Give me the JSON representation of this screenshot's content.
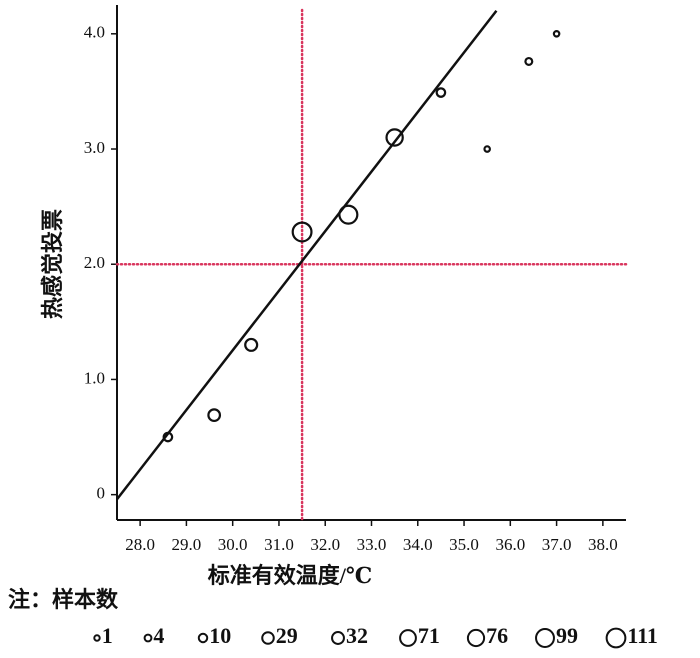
{
  "chart_data": {
    "type": "scatter",
    "xlabel": "标准有效温度/℃",
    "ylabel": "热感觉投票",
    "x": [
      28.6,
      29.6,
      30.4,
      31.5,
      32.5,
      33.5,
      34.5,
      35.5,
      36.4,
      37.0
    ],
    "y": [
      0.5,
      0.69,
      1.3,
      2.28,
      2.43,
      3.1,
      3.49,
      3.0,
      3.76,
      4.0
    ],
    "sizes": [
      10,
      29,
      32,
      111,
      99,
      76,
      10,
      1,
      4,
      1
    ],
    "color": "#111111",
    "fit": {
      "x": [
        27.5,
        35.7
      ],
      "y": [
        -0.04,
        4.2
      ],
      "color": "#111111"
    },
    "ref_x": 31.5,
    "ref_y": 2.0,
    "ref_color": "#d9365e",
    "xlim": [
      27.5,
      38.5
    ],
    "ylim": [
      -0.22,
      4.25
    ],
    "xticks": [
      {
        "value": 28,
        "label": "28.0"
      },
      {
        "value": 29,
        "label": "29.0"
      },
      {
        "value": 30,
        "label": "30.0"
      },
      {
        "value": 31,
        "label": "31.0"
      },
      {
        "value": 32,
        "label": "32.0"
      },
      {
        "value": 33,
        "label": "33.0"
      },
      {
        "value": 34,
        "label": "34.0"
      },
      {
        "value": 35,
        "label": "35.0"
      },
      {
        "value": 36,
        "label": "36.0"
      },
      {
        "value": 37,
        "label": "37.0"
      },
      {
        "value": 38,
        "label": "38.0"
      }
    ],
    "yticks": [
      0,
      {
        "value": 1,
        "label": "1.0"
      },
      {
        "value": 2,
        "label": "2.0"
      },
      {
        "value": 3,
        "label": "3.0"
      },
      {
        "value": 4,
        "label": "4.0"
      }
    ],
    "legend": {
      "title": "注：样本数",
      "sizes": [
        1,
        4,
        10,
        29,
        32,
        71,
        76,
        99,
        111
      ]
    }
  }
}
